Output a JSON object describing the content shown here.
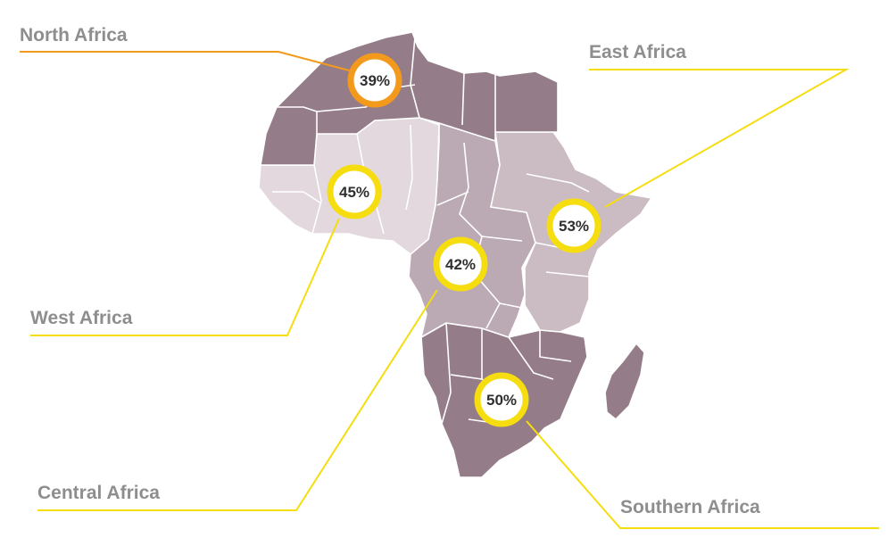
{
  "colors": {
    "north": "#947c88",
    "south": "#947c88",
    "central": "#bba9b3",
    "east": "#cbbbc3",
    "west": "#e2d8dd",
    "border": "#ffffff",
    "orange": "#f39a1d",
    "yellow": "#f5dd10",
    "label": "#8e8e8e",
    "value": "#2f2f2f"
  },
  "regions": [
    {
      "id": "north",
      "label": "North Africa",
      "value": "39%",
      "ring_color": "orange"
    },
    {
      "id": "east",
      "label": "East Africa",
      "value": "53%",
      "ring_color": "yellow"
    },
    {
      "id": "west",
      "label": "West Africa",
      "value": "45%",
      "ring_color": "yellow"
    },
    {
      "id": "central",
      "label": "Central Africa",
      "value": "42%",
      "ring_color": "yellow"
    },
    {
      "id": "southern",
      "label": "Southern Africa",
      "value": "50%",
      "ring_color": "yellow"
    }
  ]
}
